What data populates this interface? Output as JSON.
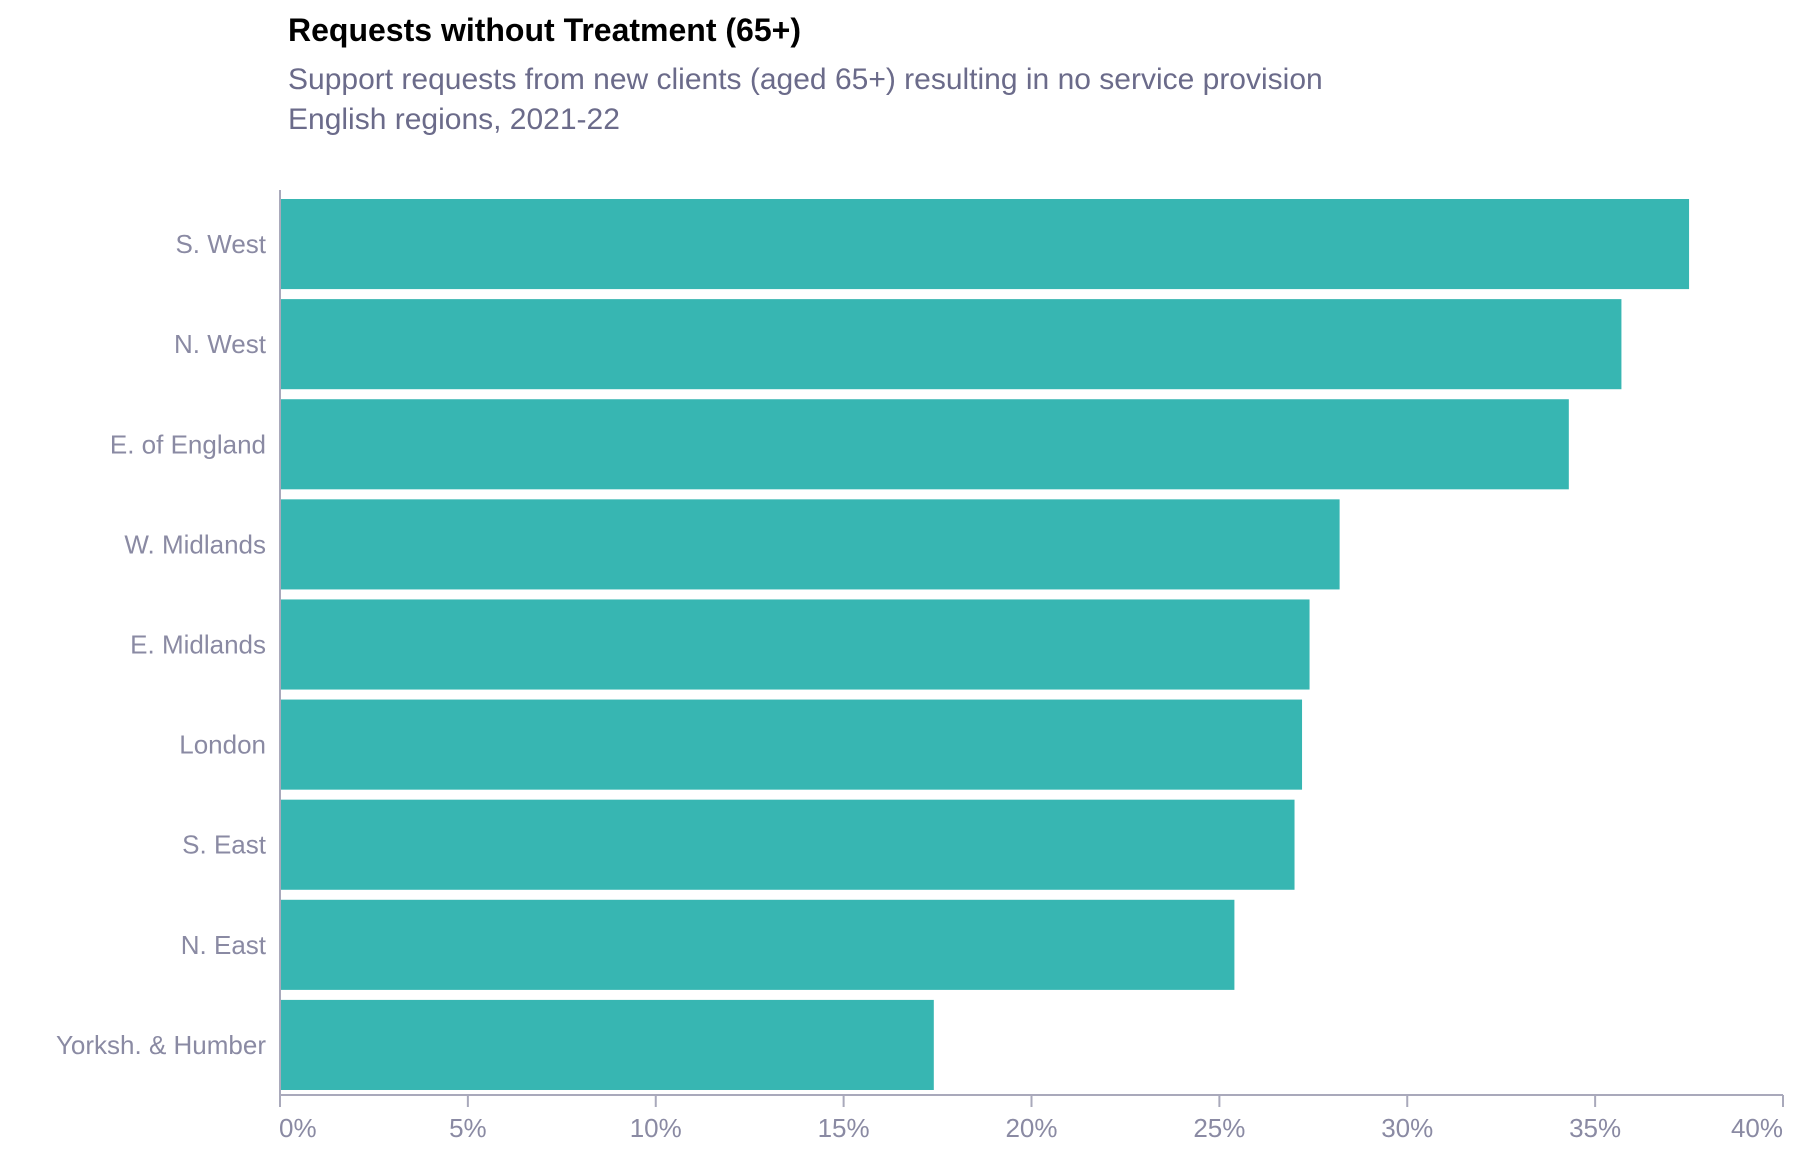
{
  "chart_data": {
    "type": "bar",
    "orientation": "horizontal",
    "title": "Requests without Treatment (65+)",
    "subtitle_lines": [
      "Support requests from new clients (aged 65+) resulting in no service provision",
      "English regions, 2021-22"
    ],
    "categories": [
      "S. West",
      "N. West",
      "E. of England",
      "W. Midlands",
      "E. Midlands",
      "London",
      "S. East",
      "N. East",
      "Yorksh. & Humber"
    ],
    "values": [
      37.5,
      35.7,
      34.3,
      28.2,
      27.4,
      27.2,
      27.0,
      25.4,
      17.4
    ],
    "unit": "%",
    "xlim": [
      0,
      40
    ],
    "x_ticks": [
      0,
      5,
      10,
      15,
      20,
      25,
      30,
      35,
      40
    ],
    "x_tick_labels": [
      "0%",
      "5%",
      "10%",
      "15%",
      "20%",
      "25%",
      "30%",
      "35%",
      "40%"
    ],
    "bar_color": "#37b6b2",
    "axis_color": "#a9a9bb",
    "grid": false,
    "legend": "none"
  }
}
